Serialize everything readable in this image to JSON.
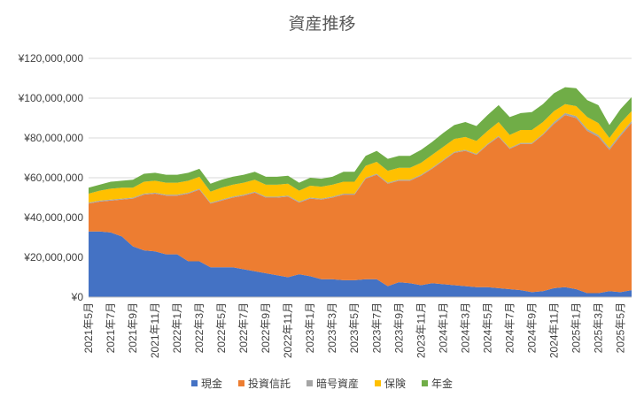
{
  "chart_data": {
    "type": "area",
    "stacked": true,
    "title": "資産推移",
    "xlabel": "",
    "ylabel": "",
    "ylim": [
      0,
      120000000
    ],
    "yticks": [
      0,
      20000000,
      40000000,
      60000000,
      80000000,
      100000000,
      120000000
    ],
    "ytick_labels": [
      "¥0",
      "¥20,000,000",
      "¥40,000,000",
      "¥60,000,000",
      "¥80,000,000",
      "¥100,000,000",
      "¥120,000,000"
    ],
    "grid": true,
    "legend_position": "bottom",
    "x": [
      "2021年5月",
      "2021年6月",
      "2021年7月",
      "2021年8月",
      "2021年9月",
      "2021年10月",
      "2021年11月",
      "2021年12月",
      "2022年1月",
      "2022年2月",
      "2022年3月",
      "2022年4月",
      "2022年5月",
      "2022年6月",
      "2022年7月",
      "2022年8月",
      "2022年9月",
      "2022年10月",
      "2022年11月",
      "2022年12月",
      "2023年1月",
      "2023年2月",
      "2023年3月",
      "2023年4月",
      "2023年5月",
      "2023年6月",
      "2023年7月",
      "2023年8月",
      "2023年9月",
      "2023年10月",
      "2023年11月",
      "2023年12月",
      "2024年1月",
      "2024年2月",
      "2024年3月",
      "2024年4月",
      "2024年5月",
      "2024年6月",
      "2024年7月",
      "2024年8月",
      "2024年9月",
      "2024年10月",
      "2024年11月",
      "2024年12月",
      "2025年1月",
      "2025年2月",
      "2025年3月",
      "2025年4月",
      "2025年5月",
      "2025年6月"
    ],
    "x_tick_labels": [
      "2021年5月",
      "2021年7月",
      "2021年9月",
      "2021年11月",
      "2022年1月",
      "2022年3月",
      "2022年5月",
      "2022年7月",
      "2022年9月",
      "2022年11月",
      "2023年1月",
      "2023年3月",
      "2023年5月",
      "2023年7月",
      "2023年9月",
      "2023年11月",
      "2024年1月",
      "2024年3月",
      "2024年5月",
      "2024年7月",
      "2024年9月",
      "2024年11月",
      "2025年1月",
      "2025年3月",
      "2025年5月"
    ],
    "series": [
      {
        "name": "現金",
        "color": "#4472c4",
        "values": [
          33000000,
          33000000,
          32500000,
          30500000,
          25500000,
          23500000,
          23000000,
          21500000,
          21500000,
          18000000,
          18000000,
          15000000,
          15000000,
          15000000,
          14000000,
          13000000,
          12000000,
          11000000,
          10000000,
          11500000,
          10500000,
          9000000,
          9000000,
          8500000,
          8500000,
          9000000,
          9000000,
          5500000,
          7500000,
          7000000,
          6000000,
          7000000,
          6500000,
          6000000,
          5500000,
          5000000,
          5000000,
          4500000,
          4000000,
          3500000,
          2500000,
          3000000,
          4500000,
          5000000,
          4000000,
          2000000,
          2000000,
          3000000,
          2500000,
          3500000
        ]
      },
      {
        "name": "投資信託",
        "color": "#ed7d31",
        "values": [
          14000000,
          15000000,
          16000000,
          18500000,
          24000000,
          28000000,
          29000000,
          29500000,
          29500000,
          34000000,
          36000000,
          32000000,
          33500000,
          35000000,
          37000000,
          39500000,
          38000000,
          39000000,
          40500000,
          36000000,
          39000000,
          40000000,
          41000000,
          43000000,
          43000000,
          50500000,
          52500000,
          51500000,
          51000000,
          51500000,
          55000000,
          57500000,
          62000000,
          66500000,
          68000000,
          66500000,
          71500000,
          76000000,
          70500000,
          73500000,
          74500000,
          78500000,
          82500000,
          86500000,
          86000000,
          81500000,
          78500000,
          71000000,
          78500000,
          84000000
        ]
      },
      {
        "name": "暗号資産",
        "color": "#a5a5a5",
        "values": [
          500000,
          500000,
          500000,
          500000,
          500000,
          500000,
          500000,
          500000,
          500000,
          500000,
          500000,
          500000,
          500000,
          500000,
          500000,
          500000,
          500000,
          500000,
          500000,
          500000,
          500000,
          500000,
          500000,
          500000,
          500000,
          500000,
          500000,
          500000,
          500000,
          500000,
          500000,
          500000,
          500000,
          500000,
          500000,
          500000,
          500000,
          500000,
          500000,
          500000,
          500000,
          500000,
          1000000,
          1000000,
          1000000,
          1000000,
          1000000,
          1000000,
          1000000,
          1000000
        ]
      },
      {
        "name": "保険",
        "color": "#ffc000",
        "values": [
          4500000,
          5000000,
          5500000,
          5500000,
          5000000,
          6000000,
          6000000,
          6000000,
          6000000,
          6000000,
          6000000,
          5500000,
          6000000,
          6000000,
          6000000,
          6000000,
          6000000,
          6000000,
          6000000,
          5500000,
          6000000,
          6000000,
          6000000,
          6000000,
          6000000,
          6000000,
          6000000,
          6000000,
          6000000,
          6000000,
          6000000,
          6500000,
          6500000,
          6500000,
          6500000,
          6500000,
          6500000,
          7000000,
          6500000,
          6500000,
          6500000,
          6000000,
          5500000,
          4500000,
          5000000,
          6000000,
          6000000,
          5000000,
          5500000,
          5000000
        ]
      },
      {
        "name": "年金",
        "color": "#70ad47",
        "values": [
          3000000,
          3000000,
          3500000,
          3500000,
          4000000,
          4000000,
          4000000,
          4000000,
          4000000,
          4000000,
          4000000,
          4000000,
          4000000,
          4000000,
          4000000,
          4000000,
          4000000,
          4000000,
          4000000,
          4000000,
          4000000,
          4000000,
          4000000,
          5000000,
          5000000,
          5000000,
          5500000,
          6000000,
          6000000,
          6000000,
          6500000,
          6500000,
          7000000,
          7000000,
          7500000,
          7500000,
          8000000,
          8500000,
          9000000,
          8500000,
          9000000,
          9000000,
          9000000,
          8500000,
          9000000,
          8500000,
          9000000,
          6500000,
          7000000,
          7000000
        ]
      }
    ]
  }
}
